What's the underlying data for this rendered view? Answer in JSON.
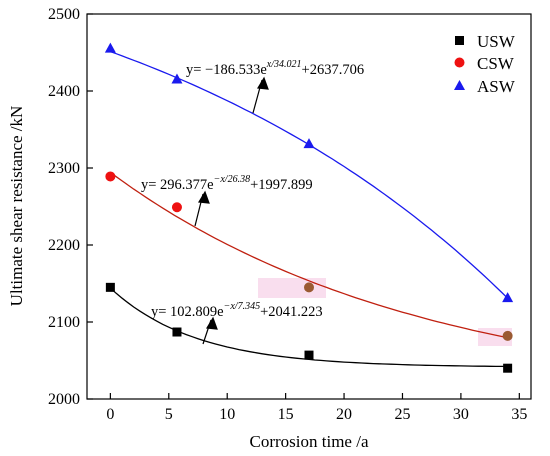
{
  "chart_data": {
    "type": "scatter",
    "xlabel": "Corrosion time /a",
    "ylabel": "Ultimate shear resistance /kN",
    "xlim": [
      -2,
      36
    ],
    "ylim": [
      2000,
      2500
    ],
    "x_ticks": [
      "0",
      "5",
      "10",
      "15",
      "20",
      "25",
      "30",
      "35"
    ],
    "y_ticks": [
      "2000",
      "2100",
      "2200",
      "2300",
      "2400",
      "2500"
    ],
    "legend_position": "top-right",
    "series": [
      {
        "name": "USW",
        "marker": "square",
        "color": "#000000",
        "fit_color": "#000000",
        "x": [
          0,
          5.7,
          17,
          34
        ],
        "y": [
          2145,
          2087,
          2057,
          2040
        ],
        "fit": {
          "a": 102.809,
          "sign": -1,
          "t": 7.345,
          "c": 2041.223
        },
        "equation": {
          "prefix": "y= 102.809e",
          "exponent": "−x/7.345",
          "suffix": "+2041.223"
        }
      },
      {
        "name": "CSW",
        "marker": "circle",
        "color": "#ee1111",
        "fit_color": "#c02010",
        "x": [
          0,
          5.7,
          17,
          34
        ],
        "y": [
          2289,
          2249,
          2145,
          2082
        ],
        "fit": {
          "a": 296.377,
          "sign": -1,
          "t": 26.38,
          "c": 1997.899
        },
        "equation": {
          "prefix": "y= 296.377e",
          "exponent": "−x/26.38",
          "suffix": "+1997.899"
        }
      },
      {
        "name": "ASW",
        "marker": "triangle",
        "color": "#1a1aee",
        "fit_color": "#1a1aee",
        "x": [
          0,
          5.7,
          17,
          34
        ],
        "y": [
          2455,
          2415,
          2331,
          2131
        ],
        "fit": {
          "a": -186.533,
          "sign": 1,
          "t": 34.021,
          "c": 2637.706
        },
        "equation": {
          "prefix": "y= −186.533e",
          "exponent": "x/34.021",
          "suffix": "+2637.706"
        }
      }
    ]
  }
}
